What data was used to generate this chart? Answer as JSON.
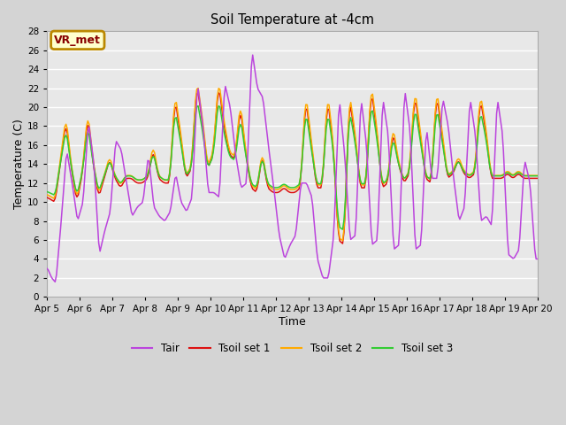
{
  "title": "Soil Temperature at -4cm",
  "xlabel": "Time",
  "ylabel": "Temperature (C)",
  "ylim": [
    0,
    28
  ],
  "xlim": [
    0,
    360
  ],
  "annotation_label": "VR_met",
  "annotation_bg": "#ffffcc",
  "annotation_border": "#bb8800",
  "annotation_text_color": "#880000",
  "x_tick_labels": [
    "Apr 5",
    "Apr 6",
    "Apr 7",
    "Apr 8",
    "Apr 9",
    "Apr 10",
    "Apr 11",
    "Apr 12",
    "Apr 13",
    "Apr 14",
    "Apr 15",
    "Apr 16",
    "Apr 17",
    "Apr 18",
    "Apr 19",
    "Apr 20"
  ],
  "x_tick_positions": [
    0,
    24,
    48,
    72,
    96,
    120,
    144,
    168,
    192,
    216,
    240,
    264,
    288,
    312,
    336,
    360
  ],
  "legend_labels": [
    "Tair",
    "Tsoil set 1",
    "Tsoil set 2",
    "Tsoil set 3"
  ],
  "line_colors": [
    "#bb44dd",
    "#dd1111",
    "#ffaa00",
    "#33cc33"
  ],
  "tair_peaks": [
    3.0,
    15.5,
    18.5,
    16.5,
    15.0,
    13.0,
    22.5,
    22.5,
    26.0,
    21.0,
    6.5,
    12.5,
    21.0,
    21.0,
    21.0,
    21.0,
    22.0,
    22.0,
    20.0,
    21.0,
    22.0,
    17.5,
    21.0,
    14.5,
    21.0,
    21.0,
    21.0,
    21.0,
    21.0,
    14.5
  ],
  "tair_valleys": [
    1.5,
    8.0,
    4.5,
    8.5,
    8.5,
    8.0,
    8.5,
    10.5,
    10.5,
    11.5,
    4.0,
    2.0,
    2.0,
    2.0,
    10.5,
    6.0,
    6.0,
    5.0,
    12.0,
    5.0,
    5.5,
    12.0,
    12.0,
    12.5,
    8.0,
    9.0,
    8.0,
    7.5,
    4.0,
    4.0
  ],
  "tsoil1_peaks": [
    18.5,
    19.0,
    19.0,
    15.5,
    15.5,
    12.5,
    21.0,
    22.5,
    22.5,
    20.0,
    15.0,
    11.5,
    21.0,
    21.0,
    21.0,
    21.5,
    22.0,
    22.0,
    17.5,
    21.5,
    21.5,
    17.5,
    21.5,
    14.5,
    21.5,
    21.5,
    21.5,
    20.5,
    21.0,
    12.5
  ],
  "tsoil1_valleys": [
    10.0,
    13.5,
    10.0,
    12.5,
    11.5,
    12.0,
    12.5,
    13.5,
    15.0,
    14.5,
    11.0,
    11.0,
    11.0,
    11.0,
    12.0,
    11.5,
    11.5,
    11.0,
    12.0,
    11.5,
    11.5,
    13.0,
    13.0,
    12.5,
    12.5,
    12.0,
    12.0,
    12.0,
    13.0,
    12.5
  ],
  "tsoil2_peaks": [
    10.5,
    18.0,
    18.5,
    15.5,
    16.5,
    12.5,
    21.0,
    22.5,
    22.5,
    19.5,
    15.0,
    12.0,
    21.0,
    21.0,
    21.0,
    22.0,
    21.5,
    21.5,
    18.5,
    21.5,
    22.0,
    17.5,
    21.5,
    19.0,
    21.5,
    21.5,
    21.5,
    21.5,
    21.0,
    12.5
  ],
  "tsoil2_valleys": [
    10.0,
    13.0,
    10.0,
    12.0,
    12.0,
    12.0,
    12.5,
    13.5,
    15.0,
    14.5,
    11.0,
    11.0,
    11.0,
    11.0,
    12.5,
    12.0,
    12.0,
    11.5,
    12.5,
    12.0,
    12.0,
    13.5,
    13.0,
    12.5,
    13.0,
    12.5,
    12.5,
    12.5,
    13.5,
    13.0
  ],
  "tsoil3_peaks": [
    12.0,
    15.5,
    16.5,
    14.5,
    16.5,
    12.5,
    18.5,
    18.5,
    18.5,
    17.5,
    13.5,
    11.0,
    17.0,
    17.5,
    17.0,
    18.0,
    18.0,
    18.0,
    17.5,
    18.0,
    18.0,
    16.0,
    18.0,
    15.5,
    18.0,
    18.0,
    16.5,
    16.5,
    16.5,
    12.5
  ],
  "tsoil3_valleys": [
    10.0,
    12.5,
    10.5,
    12.0,
    11.0,
    11.5,
    12.5,
    13.0,
    14.5,
    13.5,
    11.0,
    10.5,
    10.5,
    10.5,
    11.5,
    11.5,
    11.0,
    11.0,
    12.0,
    11.5,
    11.5,
    12.5,
    12.5,
    12.0,
    12.5,
    12.0,
    12.0,
    12.0,
    13.0,
    12.0
  ]
}
